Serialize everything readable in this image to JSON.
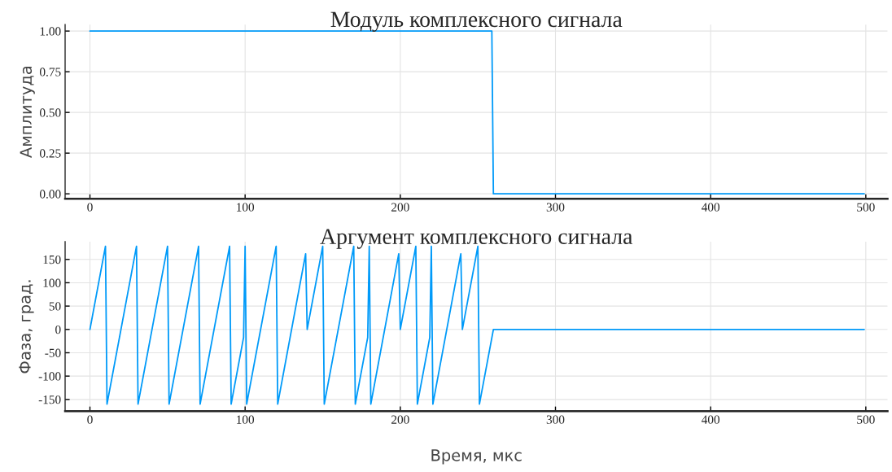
{
  "chart_data": [
    {
      "type": "line",
      "title": "Модуль комплексного сигнала",
      "ylabel": "Амплитуда",
      "grid": true,
      "xlim": [
        -16,
        514
      ],
      "ylim": [
        -0.03,
        1.04
      ],
      "xticks": [
        0,
        100,
        200,
        300,
        400,
        500
      ],
      "yticks": [
        {
          "value": 0,
          "label": "0.00"
        },
        {
          "value": 0.25,
          "label": "0.25"
        },
        {
          "value": 0.5,
          "label": "0.50"
        },
        {
          "value": 0.75,
          "label": "0.75"
        },
        {
          "value": 1,
          "label": "1.00"
        }
      ],
      "series": [
        {
          "color": "#009af9",
          "x": [
            0,
            259,
            260,
            499
          ],
          "values": [
            1,
            1,
            0,
            0
          ]
        }
      ]
    },
    {
      "type": "line",
      "title": "Аргумент комплексного сигнала",
      "ylabel": "Фаза, град.",
      "xlabel": "Время, мкс",
      "grid": true,
      "xlim": [
        -16,
        514
      ],
      "ylim": [
        -175,
        188
      ],
      "xticks": [
        0,
        100,
        200,
        300,
        400,
        500
      ],
      "yticks": [
        -150,
        -100,
        -50,
        0,
        50,
        100,
        150
      ],
      "series": [
        {
          "color": "#009af9",
          "x": [
            0,
            10,
            11,
            30,
            31,
            50,
            51,
            70,
            71,
            90,
            91,
            99,
            100,
            101,
            120,
            121,
            139,
            140,
            150,
            151,
            170,
            171,
            179,
            180,
            181,
            199,
            200,
            210,
            211,
            219,
            220,
            221,
            239,
            240,
            250,
            251,
            260,
            499
          ],
          "values": [
            0,
            178,
            -160,
            178,
            -160,
            178,
            -160,
            178,
            -160,
            178,
            -160,
            -17,
            178,
            -160,
            178,
            -160,
            162,
            0,
            178,
            -160,
            178,
            -160,
            -17,
            178,
            -160,
            162,
            0,
            178,
            -160,
            -17,
            178,
            -160,
            162,
            0,
            178,
            -160,
            0,
            0
          ]
        }
      ]
    }
  ]
}
